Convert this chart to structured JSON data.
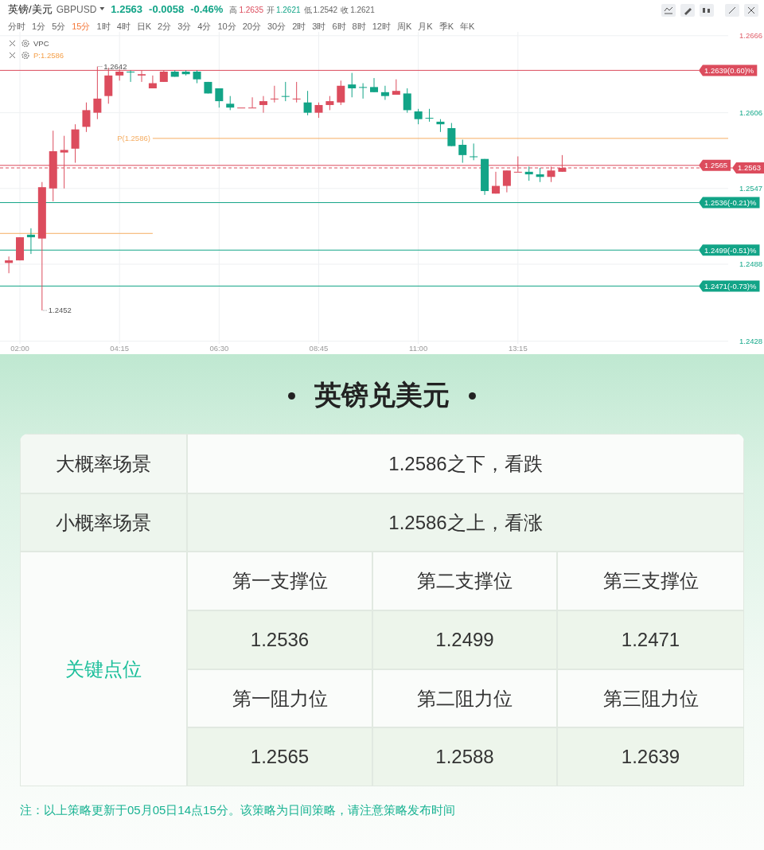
{
  "chart_data": [
    {
      "type": "candlestick",
      "title": "英镑/美元",
      "subtitle": "GBPUSD",
      "x": [
        1.75,
        2,
        2.25,
        2.5,
        2.75,
        3,
        3.25,
        3.5,
        3.75,
        4,
        4.25,
        4.5,
        4.75,
        5,
        5.25,
        5.5,
        5.75,
        6,
        6.25,
        6.5,
        6.75,
        7,
        7.25,
        7.5,
        7.75,
        8,
        8.25,
        8.5,
        8.75,
        9,
        9.25,
        9.5,
        9.75,
        10,
        10.25,
        10.5,
        10.75,
        11,
        11.25,
        11.5,
        11.75,
        12,
        12.25,
        12.5,
        12.75,
        13,
        13.25,
        13.5,
        13.75,
        14,
        14.25
      ],
      "ohlc": [
        [
          1.2489,
          1.2494,
          1.2481,
          1.2491
        ],
        [
          1.2491,
          1.2509,
          1.2491,
          1.2509
        ],
        [
          1.2511,
          1.2516,
          1.2496,
          1.2509
        ],
        [
          1.2508,
          1.2552,
          1.2452,
          1.2548
        ],
        [
          1.2547,
          1.2592,
          1.2537,
          1.2576
        ],
        [
          1.2575,
          1.2588,
          1.2547,
          1.2577
        ],
        [
          1.2578,
          1.2597,
          1.2567,
          1.2593
        ],
        [
          1.2595,
          1.2614,
          1.2591,
          1.2608
        ],
        [
          1.2606,
          1.2642,
          1.2601,
          1.2617
        ],
        [
          1.2619,
          1.2641,
          1.2613,
          1.2635
        ],
        [
          1.2635,
          1.264,
          1.2631,
          1.2638
        ],
        [
          1.2638,
          1.2639,
          1.263,
          1.2638
        ],
        [
          1.2635,
          1.2639,
          1.263,
          1.2636
        ],
        [
          1.2625,
          1.2635,
          1.2625,
          1.2629
        ],
        [
          1.263,
          1.2639,
          1.263,
          1.2638
        ],
        [
          1.2638,
          1.2639,
          1.2634,
          1.2634
        ],
        [
          1.2638,
          1.2639,
          1.2635,
          1.2636
        ],
        [
          1.2638,
          1.2639,
          1.2629,
          1.2632
        ],
        [
          1.263,
          1.263,
          1.2621,
          1.2621
        ],
        [
          1.2625,
          1.2625,
          1.261,
          1.2615
        ],
        [
          1.2613,
          1.2619,
          1.2608,
          1.261
        ],
        [
          1.261,
          1.261,
          1.261,
          1.261
        ],
        [
          1.261,
          1.2618,
          1.261,
          1.261
        ],
        [
          1.2612,
          1.2619,
          1.2606,
          1.2615
        ],
        [
          1.2617,
          1.2627,
          1.2614,
          1.2617
        ],
        [
          1.2619,
          1.263,
          1.2615,
          1.2619
        ],
        [
          1.2617,
          1.263,
          1.2614,
          1.2617
        ],
        [
          1.2614,
          1.2623,
          1.2604,
          1.2606
        ],
        [
          1.2606,
          1.2614,
          1.2602,
          1.2612
        ],
        [
          1.2612,
          1.2619,
          1.2608,
          1.2615
        ],
        [
          1.2614,
          1.2631,
          1.2612,
          1.2627
        ],
        [
          1.2628,
          1.2637,
          1.2618,
          1.2625
        ],
        [
          1.2626,
          1.2629,
          1.2617,
          1.2626
        ],
        [
          1.2626,
          1.2633,
          1.2622,
          1.2622
        ],
        [
          1.2622,
          1.2627,
          1.2616,
          1.2619
        ],
        [
          1.262,
          1.2632,
          1.262,
          1.2623
        ],
        [
          1.2621,
          1.2625,
          1.2606,
          1.2608
        ],
        [
          1.2607,
          1.2609,
          1.2597,
          1.2601
        ],
        [
          1.2602,
          1.2609,
          1.2599,
          1.2602
        ],
        [
          1.2599,
          1.2601,
          1.2591,
          1.2597
        ],
        [
          1.2594,
          1.2598,
          1.258,
          1.258
        ],
        [
          1.2581,
          1.2585,
          1.2567,
          1.2573
        ],
        [
          1.2572,
          1.2582,
          1.2569,
          1.2572
        ],
        [
          1.257,
          1.257,
          1.2542,
          1.2545
        ],
        [
          1.2543,
          1.256,
          1.2543,
          1.2549
        ],
        [
          1.2549,
          1.2561,
          1.2544,
          1.2561
        ],
        [
          1.256,
          1.2572,
          1.256,
          1.256
        ],
        [
          1.256,
          1.2564,
          1.2553,
          1.2558
        ],
        [
          1.2558,
          1.2563,
          1.2552,
          1.2556
        ],
        [
          1.2556,
          1.2564,
          1.2552,
          1.2561
        ],
        [
          1.256,
          1.2573,
          1.256,
          1.2563
        ]
      ],
      "colors": [
        "#dc4c5d",
        "#dc4c5d",
        "#12a487",
        "#dc4c5d",
        "#dc4c5d",
        "#dc4c5d",
        "#dc4c5d",
        "#dc4c5d",
        "#dc4c5d",
        "#dc4c5d",
        "#dc4c5d",
        "#12a487",
        "#dc4c5d",
        "#dc4c5d",
        "#dc4c5d",
        "#12a487",
        "#12a487",
        "#12a487",
        "#12a487",
        "#12a487",
        "#12a487",
        "#dc4c5d",
        "#dc4c5d",
        "#dc4c5d",
        "#dc4c5d",
        "#12a487",
        "#dc4c5d",
        "#12a487",
        "#dc4c5d",
        "#dc4c5d",
        "#dc4c5d",
        "#12a487",
        "#12a487",
        "#12a487",
        "#12a487",
        "#dc4c5d",
        "#12a487",
        "#12a487",
        "#12a487",
        "#12a487",
        "#12a487",
        "#12a487",
        "#12a487",
        "#12a487",
        "#dc4c5d",
        "#dc4c5d",
        "#dc4c5d",
        "#12a487",
        "#12a487",
        "#dc4c5d",
        "#dc4c5d"
      ],
      "xlim": [
        1.55,
        18
      ],
      "ylim": [
        1.2426,
        1.2669
      ],
      "xticks": [
        {
          "value": 2,
          "label": "02:00"
        },
        {
          "value": 4.25,
          "label": "04:15"
        },
        {
          "value": 6.5,
          "label": "06:30"
        },
        {
          "value": 8.75,
          "label": "08:45"
        },
        {
          "value": 11,
          "label": "11:00"
        },
        {
          "value": 13.25,
          "label": "13:15"
        }
      ],
      "yticks": [
        1.2428,
        1.2488,
        1.2547,
        1.2606,
        1.2666
      ],
      "grid": true,
      "series": [
        {
          "type": "line",
          "name": "P(1.2586)",
          "x": [
            5,
            18
          ],
          "values": [
            1.2586,
            1.2586
          ],
          "color": "#f5ad62"
        },
        {
          "type": "line",
          "x": [
            1.55,
            5
          ],
          "values": [
            1.2512,
            1.2512
          ],
          "color": "#f5ad62"
        }
      ],
      "ref_lines": [
        {
          "axis": "y",
          "value": 1.2639,
          "label": "1.2639(0.60)%",
          "color": "#dc4c5d"
        },
        {
          "axis": "y",
          "value": 1.2565,
          "label": "1.2565",
          "color": "#dc4c5d"
        },
        {
          "axis": "y",
          "value": 1.2563,
          "label": "1.2563",
          "color": "#dc4c5d",
          "line_style": "dashed"
        },
        {
          "axis": "y",
          "value": 1.2536,
          "label": "1.2536(-0.21)%",
          "color": "#12a487"
        },
        {
          "axis": "y",
          "value": 1.2499,
          "label": "1.2499(-0.51)%",
          "color": "#12a487"
        },
        {
          "axis": "y",
          "value": 1.2471,
          "label": "1.2471(-0.73)%",
          "color": "#12a487"
        }
      ],
      "annotations": [
        "1.2563",
        "-0.0058",
        "-0.46%",
        "高",
        "1.2635",
        "开",
        "1.2621",
        "低",
        "1.2542",
        "收",
        "1.2621",
        "分时",
        "1分",
        "5分",
        "15分",
        "1时",
        "4时",
        "日K",
        "2分",
        "3分",
        "4分",
        "10分",
        "20分",
        "30分",
        "2时",
        "3时",
        "6时",
        "8时",
        "12时",
        "周K",
        "月K",
        "季K",
        "年K",
        "VPC",
        "P:1.2586",
        {
          "text": "1.2642",
          "x": 3.75,
          "y": 1.2642
        },
        {
          "text": "1.2452",
          "x": 2.5,
          "y": 1.2452
        }
      ]
    },
    {
      "type": "other",
      "title": "英镑兑美元",
      "annotations": [
        "大概率场景",
        "1.2586之下，看跌",
        "小概率场景",
        "1.2586之上，看涨",
        "关键点位",
        "第一支撑位",
        "第二支撑位",
        "第三支撑位",
        "1.2536",
        "1.2499",
        "1.2471",
        "第一阻力位",
        "第二阻力位",
        "第三阻力位",
        "1.2565",
        "1.2588",
        "1.2639",
        "注：以上策略更新于05月05日14点15分。该策略为日间策略，请注意策略发布时间"
      ]
    }
  ]
}
